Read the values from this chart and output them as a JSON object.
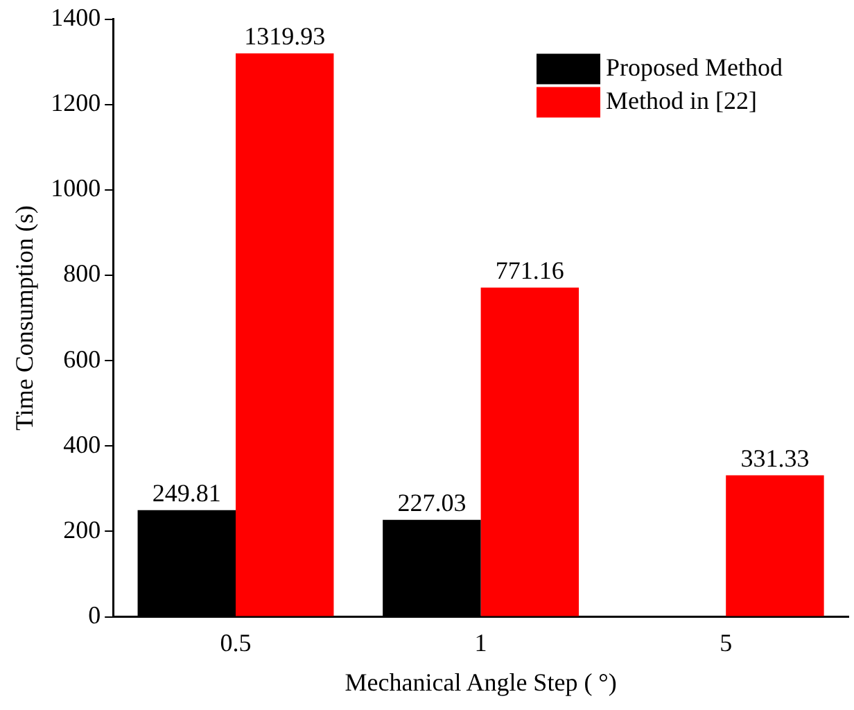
{
  "chart_data": {
    "type": "bar",
    "xlabel": "Mechanical Angle Step ( °)",
    "ylabel": "Time Consumption (s)",
    "categories": [
      "0.5",
      "1",
      "5"
    ],
    "series": [
      {
        "name": "Proposed Method",
        "color": "#000000",
        "values": [
          249.81,
          227.03,
          null
        ]
      },
      {
        "name": "Method in [22]",
        "color": "#ff0000",
        "values": [
          1319.93,
          771.16,
          331.33
        ]
      }
    ],
    "ylim": [
      0,
      1400
    ],
    "yticks": [
      0,
      200,
      400,
      600,
      800,
      1000,
      1200,
      1400
    ],
    "grid": false,
    "legend": "top right",
    "data_labels": true
  }
}
